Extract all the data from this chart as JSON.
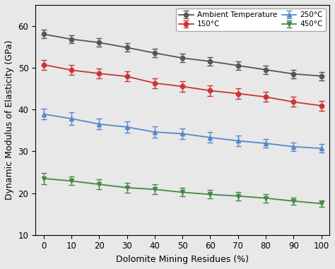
{
  "x": [
    0,
    10,
    20,
    30,
    40,
    50,
    60,
    70,
    80,
    90,
    100
  ],
  "series": {
    "Ambient Temperature": {
      "y": [
        58.0,
        56.8,
        56.0,
        54.8,
        53.5,
        52.3,
        51.5,
        50.5,
        49.5,
        48.5,
        48.0
      ],
      "yerr": [
        1.0,
        1.0,
        1.0,
        1.0,
        1.0,
        1.0,
        1.0,
        1.0,
        1.0,
        1.0,
        1.0
      ],
      "color": "#555555",
      "marker": "o",
      "linestyle": "-"
    },
    "150°C": {
      "y": [
        50.7,
        49.4,
        48.6,
        47.9,
        46.3,
        45.5,
        44.5,
        43.8,
        43.0,
        41.8,
        40.9
      ],
      "yerr": [
        1.2,
        1.2,
        1.2,
        1.2,
        1.2,
        1.2,
        1.2,
        1.2,
        1.2,
        1.2,
        1.2
      ],
      "color": "#cc3333",
      "marker": "o",
      "linestyle": "-"
    },
    "250°C": {
      "y": [
        38.9,
        37.8,
        36.5,
        35.8,
        34.6,
        34.2,
        33.3,
        32.5,
        31.9,
        31.1,
        30.7
      ],
      "yerr": [
        1.2,
        1.5,
        1.3,
        1.3,
        1.3,
        1.3,
        1.3,
        1.2,
        1.0,
        1.0,
        1.0
      ],
      "color": "#5588cc",
      "marker": "^",
      "linestyle": "-"
    },
    "450°C": {
      "y": [
        23.5,
        22.9,
        22.1,
        21.3,
        20.9,
        20.2,
        19.7,
        19.3,
        18.8,
        18.1,
        17.5
      ],
      "yerr": [
        1.3,
        1.0,
        1.2,
        1.2,
        1.2,
        1.0,
        1.0,
        1.0,
        1.0,
        0.8,
        0.8
      ],
      "color": "#448844",
      "marker": "v",
      "linestyle": "-"
    }
  },
  "xlabel": "Dolomite Mining Residues (%)",
  "ylabel": "Dynamic Modulus of Elasticity (GPa)",
  "ylim": [
    10,
    65
  ],
  "yticks": [
    10,
    20,
    30,
    40,
    50,
    60
  ],
  "xlim": [
    -3,
    103
  ],
  "xticks": [
    0,
    10,
    20,
    30,
    40,
    50,
    60,
    70,
    80,
    90,
    100
  ],
  "legend_order": [
    "Ambient Temperature",
    "150°C",
    "250°C",
    "450°C"
  ],
  "bg_color": "#e8e8e8",
  "figsize": [
    4.74,
    3.81
  ],
  "dpi": 100
}
